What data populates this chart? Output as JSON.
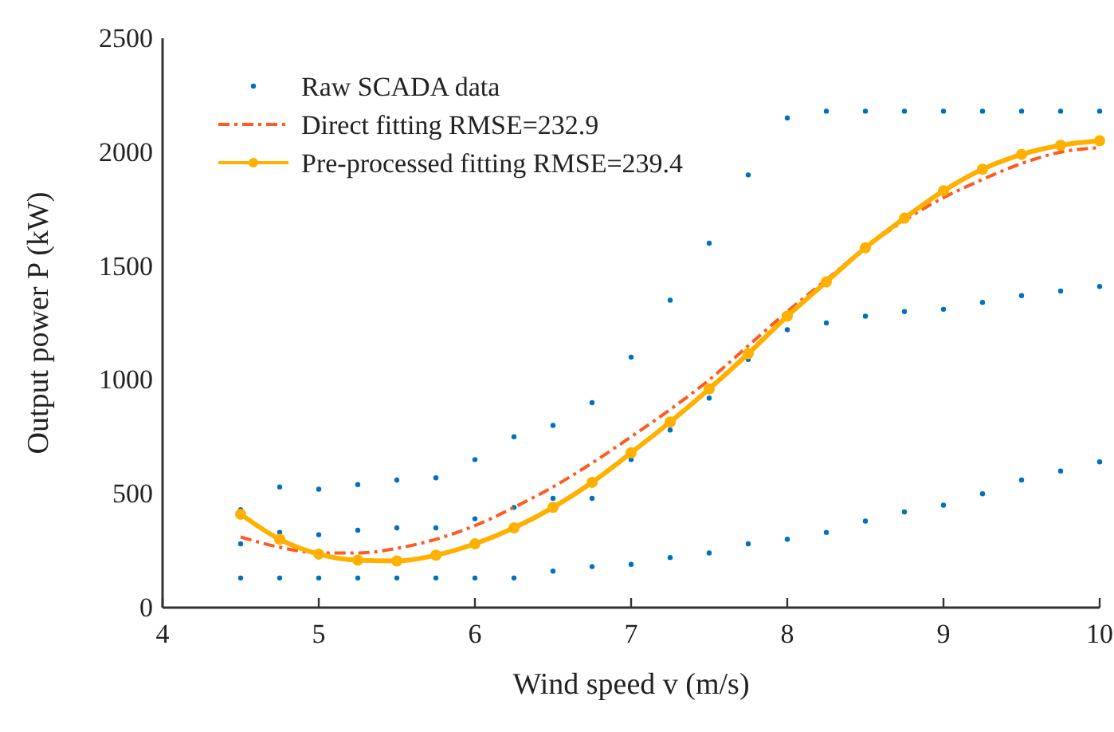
{
  "chart_data": {
    "type": "scatter",
    "xlabel": "Wind speed v (m/s)",
    "ylabel": "Output power P (kW)",
    "xlim": [
      4,
      10
    ],
    "xticks": [
      4,
      5,
      6,
      7,
      8,
      9,
      10
    ],
    "ylim": [
      0,
      2500
    ],
    "yticks": [
      0,
      500,
      1000,
      1500,
      2000,
      2500
    ],
    "grid": false,
    "legend": "top left",
    "series": [
      {
        "name": "Raw SCADA data",
        "marker": "circle",
        "color": "#0072bd",
        "x": [
          4.5,
          4.5,
          4.5,
          4.75,
          4.75,
          4.75,
          5,
          5,
          5,
          5.25,
          5.25,
          5.25,
          5.5,
          5.5,
          5.5,
          5.75,
          5.75,
          5.75,
          6,
          6,
          6,
          6.25,
          6.25,
          6.25,
          6.5,
          6.5,
          6.5,
          6.75,
          6.75,
          6.75,
          7,
          7,
          7,
          7.25,
          7.25,
          7.25,
          7.5,
          7.5,
          7.5,
          7.75,
          7.75,
          7.75,
          8,
          8,
          8,
          8.25,
          8.25,
          8.25,
          8.5,
          8.5,
          8.5,
          8.75,
          8.75,
          8.75,
          9,
          9,
          9,
          9.25,
          9.25,
          9.25,
          9.5,
          9.5,
          9.5,
          9.75,
          9.75,
          9.75,
          10,
          10,
          10
        ],
        "values": [
          130,
          280,
          430,
          130,
          330,
          530,
          130,
          320,
          520,
          130,
          340,
          540,
          130,
          350,
          560,
          130,
          350,
          570,
          130,
          390,
          650,
          130,
          440,
          750,
          160,
          480,
          800,
          180,
          480,
          900,
          190,
          650,
          1100,
          220,
          780,
          1350,
          240,
          920,
          1600,
          280,
          1090,
          1900,
          300,
          1220,
          2150,
          330,
          1250,
          2180,
          380,
          1280,
          2180,
          420,
          1300,
          2180,
          450,
          1310,
          2180,
          500,
          1340,
          2180,
          560,
          1370,
          2180,
          600,
          1390,
          2180,
          640,
          1410,
          2180
        ]
      },
      {
        "name": "Direct fitting RMSE=232.9",
        "type": "line",
        "marker": "none",
        "line_style": "dashed",
        "color": "#ff5a1f",
        "x": [
          4.5,
          4.75,
          5,
          5.25,
          5.5,
          5.75,
          6,
          6.25,
          6.5,
          6.75,
          7,
          7.25,
          7.5,
          7.75,
          8,
          8.25,
          8.5,
          8.75,
          9,
          9.25,
          9.5,
          9.75,
          10
        ],
        "values": [
          310,
          265,
          240,
          240,
          260,
          300,
          360,
          440,
          530,
          635,
          750,
          870,
          1000,
          1150,
          1300,
          1440,
          1580,
          1700,
          1800,
          1880,
          1950,
          2000,
          2020
        ]
      },
      {
        "name": "Pre-processed fitting RMSE=239.4",
        "type": "line",
        "marker": "circle",
        "line_style": "solid",
        "color": "#ffb000",
        "x": [
          4.5,
          4.75,
          5,
          5.25,
          5.5,
          5.75,
          6,
          6.25,
          6.5,
          6.75,
          7,
          7.25,
          7.5,
          7.75,
          8,
          8.25,
          8.5,
          8.75,
          9,
          9.25,
          9.5,
          9.75,
          10
        ],
        "values": [
          410,
          300,
          235,
          208,
          205,
          230,
          280,
          350,
          440,
          550,
          680,
          815,
          960,
          1115,
          1280,
          1430,
          1580,
          1710,
          1830,
          1925,
          1990,
          2030,
          2050
        ]
      }
    ]
  }
}
